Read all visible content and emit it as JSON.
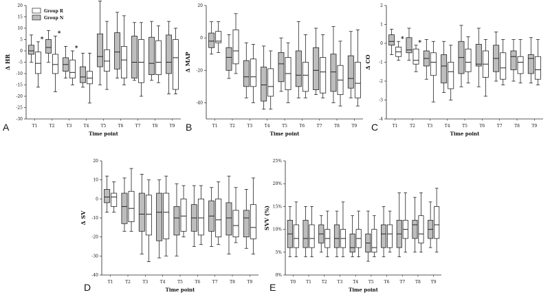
{
  "colors": {
    "group_n": "#bdbdbd",
    "group_r": "#ffffff",
    "stroke": "#222222"
  },
  "legend": {
    "group_r": "Group R",
    "group_n": "Group N"
  },
  "chart_data": [
    {
      "type": "boxplot",
      "panel": "A",
      "ylabel": "Δ HR",
      "xlabel": "Time point",
      "ylim": [
        -30,
        20
      ],
      "yticks": [
        -30,
        -25,
        -20,
        -15,
        -10,
        -5,
        0,
        5,
        10,
        15,
        20
      ],
      "categories": [
        "T1",
        "T2",
        "T3",
        "T4",
        "T5",
        "T6",
        "T7",
        "T8",
        "T9"
      ],
      "significant": [
        "T1",
        "T2",
        "T3"
      ],
      "series": [
        {
          "name": "Group N",
          "boxes": [
            [
              -5,
              -1.5,
              0,
              2.5,
              7
            ],
            [
              -5,
              -1,
              1.5,
              5,
              9
            ],
            [
              -12,
              -9,
              -6,
              -3,
              2
            ],
            [
              -16,
              -14,
              -11.5,
              -7,
              -1
            ],
            [
              -15,
              -7,
              -2.5,
              7.5,
              22
            ],
            [
              -12,
              -8,
              -0.5,
              8,
              17
            ],
            [
              -13,
              -12,
              -5,
              6.5,
              12.5
            ],
            [
              -13,
              -10.5,
              -5.5,
              6,
              13
            ],
            [
              -19,
              -10,
              -5,
              7,
              13
            ]
          ]
        },
        {
          "name": "Group R",
          "boxes": [
            [
              -16,
              -10,
              -5.5,
              -0.5,
              4
            ],
            [
              -18,
              -10,
              -6,
              -1.5,
              6.5
            ],
            [
              -15,
              -12,
              -9.5,
              -4,
              0
            ],
            [
              -23,
              -14.5,
              -12,
              -9,
              -1
            ],
            [
              -17,
              -9,
              -4.5,
              0.5,
              13
            ],
            [
              -15,
              -12,
              -4,
              2,
              15.5
            ],
            [
              -20,
              -14,
              -5,
              5,
              12.5
            ],
            [
              -14,
              -10.5,
              -5,
              4.5,
              11
            ],
            [
              -19,
              -17,
              -3,
              5,
              10
            ]
          ]
        }
      ]
    },
    {
      "type": "boxplot",
      "panel": "B",
      "ylabel": "Δ MAP",
      "xlabel": "Time point",
      "ylim": [
        -50,
        20
      ],
      "yticks": [
        -40,
        -20,
        0,
        20
      ],
      "categories": [
        "T1",
        "T2",
        "T3",
        "T4",
        "T5",
        "T6",
        "T7",
        "T8",
        "T9"
      ],
      "significant": [],
      "series": [
        {
          "name": "Group N",
          "boxes": [
            [
              -10,
              -6,
              -2,
              3,
              10
            ],
            [
              -25,
              -20,
              -12,
              -6,
              2
            ],
            [
              -37,
              -30,
              -24,
              -14,
              -3
            ],
            [
              -44,
              -39,
              -29,
              -18,
              -5
            ],
            [
              -33,
              -27,
              -16,
              -9,
              0
            ],
            [
              -37,
              -30,
              -23,
              -8,
              10
            ],
            [
              -35,
              -32,
              -20,
              -6,
              6
            ],
            [
              -40,
              -33,
              -21,
              -10,
              7
            ],
            [
              -37,
              -31,
              -25,
              -11,
              4
            ]
          ]
        },
        {
          "name": "Group R",
          "boxes": [
            [
              -9,
              -3,
              -2,
              4,
              10
            ],
            [
              -22,
              -16,
              -8,
              5,
              15
            ],
            [
              -40,
              -30,
              -24,
              -13,
              -4
            ],
            [
              -44,
              -36,
              -30,
              -19,
              -8
            ],
            [
              -40,
              -32,
              -22,
              -12,
              -3
            ],
            [
              -37,
              -33,
              -23,
              -15,
              2
            ],
            [
              -37,
              -34,
              -21,
              -12,
              2
            ],
            [
              -42,
              -35,
              -26,
              -17,
              -2
            ],
            [
              -42,
              -37,
              -28,
              -15,
              5
            ]
          ]
        }
      ]
    },
    {
      "type": "boxplot",
      "panel": "C",
      "ylabel": "Δ CO",
      "xlabel": "Time point",
      "ylim": [
        -4,
        2
      ],
      "yticks": [
        -4,
        -3,
        -2,
        -1,
        0,
        1,
        2
      ],
      "categories": [
        "T1",
        "T2",
        "T3",
        "T4",
        "T5",
        "T6",
        "T7",
        "T8",
        "T9"
      ],
      "significant": [
        "T1",
        "T2"
      ],
      "series": [
        {
          "name": "Group N",
          "boxes": [
            [
              -0.6,
              -0.1,
              0.1,
              0.45,
              0.75
            ],
            [
              -0.9,
              -0.5,
              -0.35,
              0.3,
              0.8
            ],
            [
              -1.9,
              -1.2,
              -0.8,
              -0.4,
              0.2
            ],
            [
              -2.6,
              -2.1,
              -1.2,
              -0.6,
              0.1
            ],
            [
              -2.3,
              -1.6,
              -0.75,
              0.1,
              0.95
            ],
            [
              -2.3,
              -1.2,
              -1.1,
              -0.05,
              0.8
            ],
            [
              -2,
              -1.5,
              -0.8,
              -0.1,
              0.6
            ],
            [
              -2,
              -1.4,
              -0.7,
              -0.4,
              0.2
            ],
            [
              -2.1,
              -1.6,
              -0.8,
              -0.6,
              0.3
            ]
          ]
        },
        {
          "name": "Group R",
          "boxes": [
            [
              -0.9,
              -0.7,
              -0.45,
              -0.2,
              0.1
            ],
            [
              -1.5,
              -1.1,
              -0.9,
              -0.3,
              -0.1
            ],
            [
              -3.1,
              -1.7,
              -1,
              -0.5,
              0.1
            ],
            [
              -3,
              -2.4,
              -1.5,
              -1,
              -0.1
            ],
            [
              -2.1,
              -1.5,
              -1,
              -0.3,
              0.35
            ],
            [
              -2.8,
              -1.8,
              -1.1,
              -0.4,
              0.2
            ],
            [
              -2.2,
              -1.9,
              -1.3,
              -0.5,
              0.2
            ],
            [
              -2.1,
              -1.6,
              -1,
              -0.7,
              0.2
            ],
            [
              -2.2,
              -1.9,
              -1.4,
              -0.7,
              0.2
            ]
          ]
        }
      ]
    },
    {
      "type": "boxplot",
      "panel": "D",
      "ylabel": "Δ SV",
      "xlabel": "Time point",
      "ylim": [
        -40,
        20
      ],
      "yticks": [
        -40,
        -30,
        -20,
        -10,
        0,
        10,
        20
      ],
      "categories": [
        "T1",
        "T2",
        "T3",
        "T4",
        "T5",
        "T6",
        "T7",
        "T8",
        "T9"
      ],
      "significant": [],
      "series": [
        {
          "name": "Group N",
          "boxes": [
            [
              -7,
              -2,
              1,
              5,
              12
            ],
            [
              -17,
              -13,
              -4,
              3,
              11
            ],
            [
              -29,
              -17,
              -8,
              3,
              13
            ],
            [
              -31,
              -22,
              -7,
              3,
              10
            ],
            [
              -30,
              -19,
              -10,
              -4,
              8
            ],
            [
              -25,
              -17,
              -10,
              -3,
              7
            ],
            [
              -25,
              -17,
              -9,
              -1,
              6
            ],
            [
              -29,
              -19,
              -10,
              -2,
              12
            ],
            [
              -26,
              -20,
              -10,
              -6,
              5
            ]
          ]
        },
        {
          "name": "Group R",
          "boxes": [
            [
              -7,
              -4,
              1,
              3,
              9
            ],
            [
              -17,
              -12,
              -5,
              4,
              16
            ],
            [
              -33,
              -19,
              -8,
              2,
              10
            ],
            [
              -30,
              -21,
              -7,
              3,
              12
            ],
            [
              -20,
              -17,
              -9,
              0,
              7
            ],
            [
              -24,
              -19,
              -10,
              0,
              7
            ],
            [
              -24,
              -20,
              -11,
              0,
              9
            ],
            [
              -23,
              -20,
              -14,
              -6,
              6
            ],
            [
              -29,
              -21,
              -15,
              -3,
              11
            ]
          ]
        }
      ]
    },
    {
      "type": "boxplot",
      "panel": "E",
      "ylabel": "SVV (%)",
      "xlabel": "Time point",
      "ylim": [
        0,
        25
      ],
      "yticks": [
        0,
        5,
        10,
        15,
        20,
        25
      ],
      "yticklabels": [
        "0%",
        "5%",
        "10%",
        "15%",
        "20%",
        "25%"
      ],
      "categories": [
        "T0",
        "T1",
        "T2",
        "T3",
        "T4",
        "T5",
        "T6",
        "T7",
        "T8",
        "T9"
      ],
      "significant": [],
      "series": [
        {
          "name": "Group N",
          "boxes": [
            [
              4,
              6,
              9,
              12,
              15
            ],
            [
              4,
              6,
              8,
              12,
              15
            ],
            [
              5,
              7,
              9,
              11,
              13
            ],
            [
              4,
              6,
              8,
              11,
              14
            ],
            [
              4,
              5,
              6,
              9,
              13
            ],
            [
              3,
              5,
              7,
              9,
              14
            ],
            [
              4,
              6,
              9,
              11,
              15
            ],
            [
              4,
              6,
              9,
              12,
              18
            ],
            [
              5,
              8,
              11,
              12,
              17
            ],
            [
              6,
              8,
              10,
              12,
              16
            ]
          ]
        },
        {
          "name": "Group R",
          "boxes": [
            [
              4,
              6,
              8,
              11,
              16
            ],
            [
              4,
              6,
              8,
              11,
              15
            ],
            [
              4,
              6,
              8,
              10,
              14
            ],
            [
              4,
              6,
              8,
              10,
              16
            ],
            [
              4,
              6,
              8,
              10,
              14
            ],
            [
              4,
              5,
              6,
              10,
              13
            ],
            [
              5,
              6,
              9,
              11,
              14
            ],
            [
              5,
              8,
              10,
              12,
              18
            ],
            [
              5,
              7,
              9,
              13,
              18
            ],
            [
              5,
              8,
              11,
              15,
              19
            ]
          ]
        }
      ]
    }
  ]
}
